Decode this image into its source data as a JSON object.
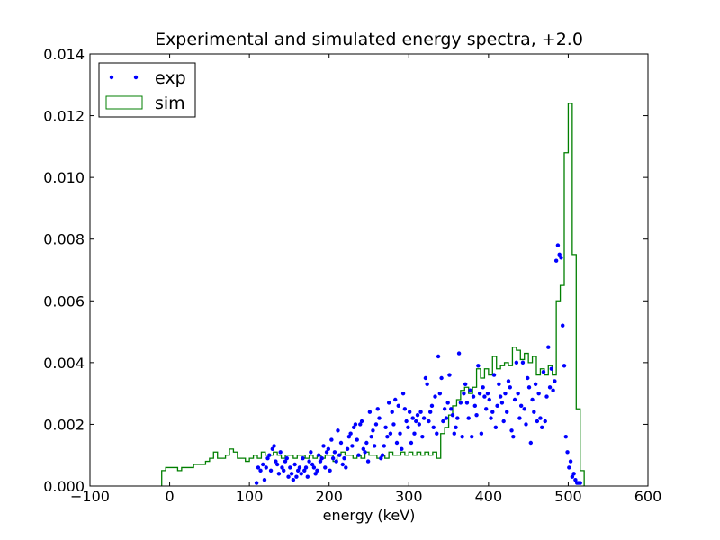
{
  "chart_data": {
    "type": "scatter",
    "title": "Experimental and simulated energy spectra, +2.0",
    "xlabel": "energy (keV)",
    "ylabel": "",
    "xlim": [
      -100,
      600
    ],
    "ylim": [
      0,
      0.014
    ],
    "grid": false,
    "legend_placement": "top-left",
    "x_ticks": [
      "−100",
      "0",
      "100",
      "200",
      "300",
      "400",
      "500",
      "600"
    ],
    "x_tick_values": [
      -100,
      0,
      100,
      200,
      300,
      400,
      500,
      600
    ],
    "y_ticks": [
      "0.000",
      "0.002",
      "0.004",
      "0.006",
      "0.008",
      "0.010",
      "0.012",
      "0.014"
    ],
    "y_tick_values": [
      0,
      0.002,
      0.004,
      0.006,
      0.008,
      0.01,
      0.012,
      0.014
    ],
    "series": [
      {
        "name": "exp",
        "style": "points",
        "color": "#0000ff",
        "points": [
          [
            109,
            0.0001
          ],
          [
            111,
            0.0006
          ],
          [
            114,
            0.0005
          ],
          [
            117,
            0.0007
          ],
          [
            119,
            0.0002
          ],
          [
            121,
            0.0006
          ],
          [
            123,
            0.0009
          ],
          [
            125,
            0.001
          ],
          [
            127,
            0.0005
          ],
          [
            129,
            0.0012
          ],
          [
            131,
            0.0013
          ],
          [
            133,
            0.0008
          ],
          [
            135,
            0.0007
          ],
          [
            137,
            0.0004
          ],
          [
            139,
            0.0011
          ],
          [
            141,
            0.0006
          ],
          [
            143,
            0.0005
          ],
          [
            145,
            0.0008
          ],
          [
            147,
            0.0009
          ],
          [
            149,
            0.0003
          ],
          [
            151,
            0.0006
          ],
          [
            153,
            0.0004
          ],
          [
            155,
            0.0002
          ],
          [
            157,
            0.0007
          ],
          [
            159,
            0.0003
          ],
          [
            161,
            0.0005
          ],
          [
            163,
            0.0006
          ],
          [
            165,
            0.0004
          ],
          [
            167,
            0.0009
          ],
          [
            169,
            0.0005
          ],
          [
            171,
            0.0006
          ],
          [
            173,
            0.0003
          ],
          [
            175,
            0.0008
          ],
          [
            177,
            0.0011
          ],
          [
            179,
            0.0007
          ],
          [
            181,
            0.0006
          ],
          [
            183,
            0.0004
          ],
          [
            185,
            0.0005
          ],
          [
            187,
            0.001
          ],
          [
            189,
            0.0008
          ],
          [
            191,
            0.0009
          ],
          [
            193,
            0.0013
          ],
          [
            195,
            0.0006
          ],
          [
            197,
            0.0011
          ],
          [
            199,
            0.0012
          ],
          [
            201,
            0.0005
          ],
          [
            203,
            0.0015
          ],
          [
            205,
            0.0009
          ],
          [
            207,
            0.0011
          ],
          [
            209,
            0.0008
          ],
          [
            211,
            0.0018
          ],
          [
            213,
            0.001
          ],
          [
            215,
            0.0014
          ],
          [
            217,
            0.0007
          ],
          [
            219,
            0.0009
          ],
          [
            221,
            0.0006
          ],
          [
            223,
            0.0012
          ],
          [
            225,
            0.0016
          ],
          [
            227,
            0.0017
          ],
          [
            229,
            0.0013
          ],
          [
            231,
            0.0019
          ],
          [
            233,
            0.002
          ],
          [
            235,
            0.0015
          ],
          [
            237,
            0.001
          ],
          [
            239,
            0.002
          ],
          [
            241,
            0.0021
          ],
          [
            243,
            0.0012
          ],
          [
            245,
            0.0011
          ],
          [
            247,
            0.0014
          ],
          [
            249,
            0.0008
          ],
          [
            251,
            0.0024
          ],
          [
            253,
            0.0016
          ],
          [
            255,
            0.0018
          ],
          [
            257,
            0.0013
          ],
          [
            259,
            0.002
          ],
          [
            261,
            0.0025
          ],
          [
            263,
            0.0022
          ],
          [
            265,
            0.0009
          ],
          [
            267,
            0.001
          ],
          [
            269,
            0.0013
          ],
          [
            271,
            0.0019
          ],
          [
            273,
            0.0016
          ],
          [
            275,
            0.0027
          ],
          [
            277,
            0.0017
          ],
          [
            279,
            0.0024
          ],
          [
            281,
            0.002
          ],
          [
            283,
            0.0028
          ],
          [
            285,
            0.0014
          ],
          [
            287,
            0.0026
          ],
          [
            289,
            0.0017
          ],
          [
            291,
            0.0012
          ],
          [
            293,
            0.003
          ],
          [
            295,
            0.0025
          ],
          [
            297,
            0.0021
          ],
          [
            299,
            0.0019
          ],
          [
            301,
            0.0024
          ],
          [
            303,
            0.0014
          ],
          [
            305,
            0.0022
          ],
          [
            307,
            0.0017
          ],
          [
            309,
            0.0021
          ],
          [
            311,
            0.0023
          ],
          [
            313,
            0.002
          ],
          [
            315,
            0.0024
          ],
          [
            317,
            0.0016
          ],
          [
            319,
            0.0022
          ],
          [
            321,
            0.0035
          ],
          [
            323,
            0.0033
          ],
          [
            325,
            0.0021
          ],
          [
            327,
            0.0024
          ],
          [
            329,
            0.0026
          ],
          [
            331,
            0.0019
          ],
          [
            333,
            0.0029
          ],
          [
            335,
            0.0017
          ],
          [
            337,
            0.0042
          ],
          [
            339,
            0.003
          ],
          [
            341,
            0.0035
          ],
          [
            343,
            0.0021
          ],
          [
            345,
            0.0025
          ],
          [
            347,
            0.0022
          ],
          [
            349,
            0.0027
          ],
          [
            351,
            0.0036
          ],
          [
            353,
            0.0025
          ],
          [
            355,
            0.0023
          ],
          [
            357,
            0.0017
          ],
          [
            359,
            0.0019
          ],
          [
            361,
            0.0022
          ],
          [
            363,
            0.0043
          ],
          [
            365,
            0.0027
          ],
          [
            367,
            0.0016
          ],
          [
            369,
            0.003
          ],
          [
            371,
            0.0033
          ],
          [
            373,
            0.0027
          ],
          [
            375,
            0.0022
          ],
          [
            377,
            0.0031
          ],
          [
            379,
            0.0016
          ],
          [
            381,
            0.0029
          ],
          [
            383,
            0.0026
          ],
          [
            385,
            0.0023
          ],
          [
            387,
            0.0039
          ],
          [
            389,
            0.003
          ],
          [
            391,
            0.0017
          ],
          [
            393,
            0.0032
          ],
          [
            395,
            0.0029
          ],
          [
            397,
            0.0025
          ],
          [
            399,
            0.003
          ],
          [
            401,
            0.0028
          ],
          [
            403,
            0.0022
          ],
          [
            405,
            0.0024
          ],
          [
            407,
            0.0036
          ],
          [
            409,
            0.0019
          ],
          [
            411,
            0.0026
          ],
          [
            413,
            0.0033
          ],
          [
            415,
            0.0029
          ],
          [
            417,
            0.0027
          ],
          [
            419,
            0.0021
          ],
          [
            421,
            0.003
          ],
          [
            423,
            0.0024
          ],
          [
            425,
            0.0034
          ],
          [
            427,
            0.0032
          ],
          [
            429,
            0.0018
          ],
          [
            431,
            0.0016
          ],
          [
            433,
            0.0028
          ],
          [
            435,
            0.004
          ],
          [
            437,
            0.003
          ],
          [
            439,
            0.0022
          ],
          [
            441,
            0.0026
          ],
          [
            443,
            0.004
          ],
          [
            445,
            0.0025
          ],
          [
            447,
            0.002
          ],
          [
            449,
            0.0035
          ],
          [
            451,
            0.0032
          ],
          [
            453,
            0.0014
          ],
          [
            455,
            0.0028
          ],
          [
            457,
            0.0024
          ],
          [
            459,
            0.0033
          ],
          [
            461,
            0.0021
          ],
          [
            463,
            0.003
          ],
          [
            465,
            0.0022
          ],
          [
            467,
            0.0019
          ],
          [
            469,
            0.0037
          ],
          [
            471,
            0.0021
          ],
          [
            473,
            0.0029
          ],
          [
            475,
            0.0045
          ],
          [
            477,
            0.0032
          ],
          [
            479,
            0.0038
          ],
          [
            481,
            0.0031
          ],
          [
            483,
            0.0034
          ],
          [
            485,
            0.0073
          ],
          [
            487,
            0.0078
          ],
          [
            489,
            0.0075
          ],
          [
            491,
            0.0074
          ],
          [
            493,
            0.0052
          ],
          [
            495,
            0.0039
          ],
          [
            497,
            0.0016
          ],
          [
            499,
            0.0011
          ],
          [
            501,
            0.0006
          ],
          [
            503,
            0.0008
          ],
          [
            505,
            0.0003
          ],
          [
            507,
            0.0004
          ],
          [
            509,
            0.0002
          ],
          [
            511,
            0.0001
          ],
          [
            513,
            0.0001
          ],
          [
            515,
            0.0001
          ]
        ]
      },
      {
        "name": "sim",
        "style": "step",
        "color": "#007f00",
        "bin_width": 5,
        "bins": [
          [
            -10,
            0.0005
          ],
          [
            -5,
            0.0006
          ],
          [
            0,
            0.0006
          ],
          [
            5,
            0.0006
          ],
          [
            10,
            0.0005
          ],
          [
            15,
            0.0006
          ],
          [
            20,
            0.0006
          ],
          [
            25,
            0.0006
          ],
          [
            30,
            0.0007
          ],
          [
            35,
            0.0007
          ],
          [
            40,
            0.0007
          ],
          [
            45,
            0.0008
          ],
          [
            50,
            0.0009
          ],
          [
            55,
            0.0011
          ],
          [
            60,
            0.0009
          ],
          [
            65,
            0.0009
          ],
          [
            70,
            0.001
          ],
          [
            75,
            0.0012
          ],
          [
            80,
            0.0011
          ],
          [
            85,
            0.0009
          ],
          [
            90,
            0.0009
          ],
          [
            95,
            0.0008
          ],
          [
            100,
            0.0009
          ],
          [
            105,
            0.001
          ],
          [
            110,
            0.0009
          ],
          [
            115,
            0.0011
          ],
          [
            120,
            0.001
          ],
          [
            125,
            0.001
          ],
          [
            130,
            0.0011
          ],
          [
            135,
            0.001
          ],
          [
            140,
            0.0009
          ],
          [
            145,
            0.001
          ],
          [
            150,
            0.001
          ],
          [
            155,
            0.0009
          ],
          [
            160,
            0.001
          ],
          [
            165,
            0.001
          ],
          [
            170,
            0.0009
          ],
          [
            175,
            0.001
          ],
          [
            180,
            0.0009
          ],
          [
            185,
            0.001
          ],
          [
            190,
            0.0009
          ],
          [
            195,
            0.001
          ],
          [
            200,
            0.001
          ],
          [
            205,
            0.0008
          ],
          [
            210,
            0.001
          ],
          [
            215,
            0.0011
          ],
          [
            220,
            0.001
          ],
          [
            225,
            0.001
          ],
          [
            230,
            0.0009
          ],
          [
            235,
            0.001
          ],
          [
            240,
            0.0009
          ],
          [
            245,
            0.0011
          ],
          [
            250,
            0.001
          ],
          [
            255,
            0.001
          ],
          [
            260,
            0.0009
          ],
          [
            265,
            0.001
          ],
          [
            270,
            0.0009
          ],
          [
            275,
            0.0011
          ],
          [
            280,
            0.001
          ],
          [
            285,
            0.001
          ],
          [
            290,
            0.0011
          ],
          [
            295,
            0.001
          ],
          [
            300,
            0.0011
          ],
          [
            305,
            0.001
          ],
          [
            310,
            0.0011
          ],
          [
            315,
            0.001
          ],
          [
            320,
            0.0011
          ],
          [
            325,
            0.001
          ],
          [
            330,
            0.0011
          ],
          [
            335,
            0.0009
          ],
          [
            340,
            0.0017
          ],
          [
            345,
            0.0019
          ],
          [
            350,
            0.0023
          ],
          [
            355,
            0.0026
          ],
          [
            360,
            0.0028
          ],
          [
            365,
            0.0031
          ],
          [
            370,
            0.0032
          ],
          [
            375,
            0.003
          ],
          [
            380,
            0.0032
          ],
          [
            385,
            0.0038
          ],
          [
            390,
            0.0035
          ],
          [
            395,
            0.0038
          ],
          [
            400,
            0.0036
          ],
          [
            405,
            0.0042
          ],
          [
            410,
            0.0038
          ],
          [
            415,
            0.0039
          ],
          [
            420,
            0.004
          ],
          [
            425,
            0.0039
          ],
          [
            430,
            0.0045
          ],
          [
            435,
            0.0044
          ],
          [
            440,
            0.0041
          ],
          [
            445,
            0.0043
          ],
          [
            450,
            0.004
          ],
          [
            455,
            0.0042
          ],
          [
            460,
            0.0036
          ],
          [
            465,
            0.0038
          ],
          [
            470,
            0.0036
          ],
          [
            475,
            0.0039
          ],
          [
            480,
            0.0036
          ],
          [
            485,
            0.006
          ],
          [
            490,
            0.0065
          ],
          [
            495,
            0.0108
          ],
          [
            500,
            0.0124
          ],
          [
            505,
            0.0075
          ],
          [
            510,
            0.0025
          ],
          [
            515,
            0.0005
          ]
        ]
      }
    ]
  }
}
